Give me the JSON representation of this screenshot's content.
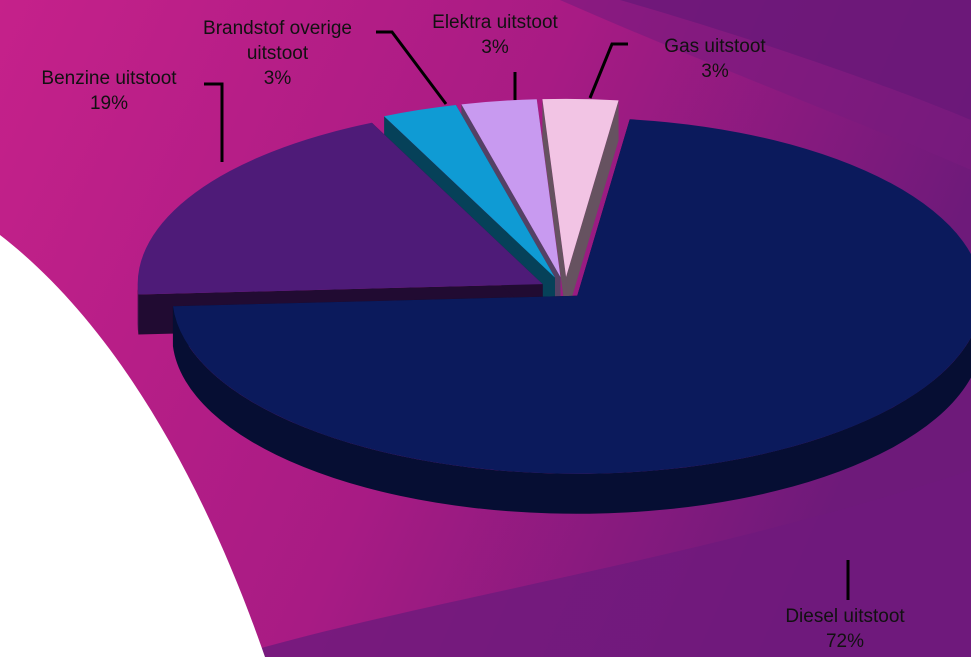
{
  "chart_data": {
    "type": "pie",
    "style": "3d-exploded",
    "slices": [
      {
        "label": "Diesel uitstoot",
        "percent_label": "72%",
        "value": 72,
        "color": "#0b1a5c"
      },
      {
        "label": "Benzine uitstoot",
        "percent_label": "19%",
        "value": 19,
        "color": "#4e1b78"
      },
      {
        "label": "Brandstof overige uitstoot",
        "label_lines": [
          "Brandstof overige",
          "uitstoot"
        ],
        "percent_label": "3%",
        "value": 3,
        "color": "#0f9bd4"
      },
      {
        "label": "Elektra uitstoot",
        "percent_label": "3%",
        "value": 3,
        "color": "#c89af0"
      },
      {
        "label": "Gas uitstoot",
        "percent_label": "3%",
        "value": 3,
        "color": "#f2c4e4"
      }
    ],
    "legend": "none",
    "data_labels": "category-and-percent"
  }
}
